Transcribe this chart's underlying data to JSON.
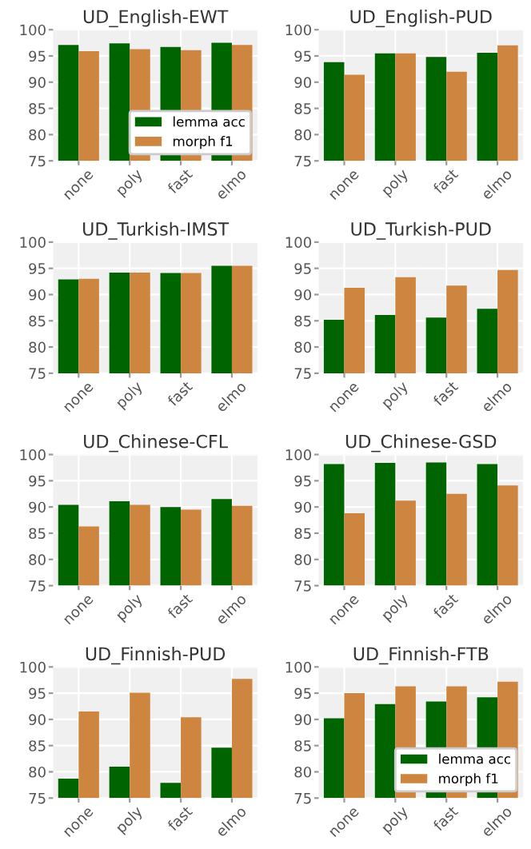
{
  "chart_data": [
    {
      "type": "bar",
      "title": "UD_English-EWT",
      "categories": [
        "none",
        "poly",
        "fast",
        "elmo"
      ],
      "ylim": [
        75,
        100
      ],
      "yticks": [
        75,
        80,
        85,
        90,
        95,
        100
      ],
      "grid": true,
      "legend": "bottom right",
      "series": [
        {
          "name": "lemma acc",
          "color": "#006400",
          "values": [
            97.1,
            97.4,
            96.7,
            97.5
          ]
        },
        {
          "name": "morph f1",
          "color": "#cd853f",
          "values": [
            95.9,
            96.3,
            96.1,
            97.1
          ]
        }
      ]
    },
    {
      "type": "bar",
      "title": "UD_English-PUD",
      "categories": [
        "none",
        "poly",
        "fast",
        "elmo"
      ],
      "ylim": [
        75,
        100
      ],
      "yticks": [
        75,
        80,
        85,
        90,
        95,
        100
      ],
      "grid": true,
      "series": [
        {
          "color": "#006400",
          "values": [
            93.8,
            95.5,
            94.8,
            95.6
          ]
        },
        {
          "color": "#cd853f",
          "values": [
            91.4,
            95.5,
            92.0,
            97.0
          ]
        }
      ]
    },
    {
      "type": "bar",
      "title": "UD_Turkish-IMST",
      "categories": [
        "none",
        "poly",
        "fast",
        "elmo"
      ],
      "ylim": [
        75,
        100
      ],
      "yticks": [
        75,
        80,
        85,
        90,
        95,
        100
      ],
      "grid": true,
      "series": [
        {
          "color": "#006400",
          "values": [
            92.9,
            94.2,
            94.1,
            95.5
          ]
        },
        {
          "color": "#cd853f",
          "values": [
            93.0,
            94.2,
            94.1,
            95.5
          ]
        }
      ]
    },
    {
      "type": "bar",
      "title": "UD_Turkish-PUD",
      "categories": [
        "none",
        "poly",
        "fast",
        "elmo"
      ],
      "ylim": [
        75,
        100
      ],
      "yticks": [
        75,
        80,
        85,
        90,
        95,
        100
      ],
      "grid": true,
      "series": [
        {
          "color": "#006400",
          "values": [
            85.2,
            86.1,
            85.6,
            87.3
          ]
        },
        {
          "color": "#cd853f",
          "values": [
            91.3,
            93.3,
            91.7,
            94.7
          ]
        }
      ]
    },
    {
      "type": "bar",
      "title": "UD_Chinese-CFL",
      "categories": [
        "none",
        "poly",
        "fast",
        "elmo"
      ],
      "ylim": [
        75,
        100
      ],
      "yticks": [
        75,
        80,
        85,
        90,
        95,
        100
      ],
      "grid": true,
      "series": [
        {
          "color": "#006400",
          "values": [
            90.4,
            91.1,
            90.0,
            91.5
          ]
        },
        {
          "color": "#cd853f",
          "values": [
            86.3,
            90.4,
            89.5,
            90.2
          ]
        }
      ]
    },
    {
      "type": "bar",
      "title": "UD_Chinese-GSD",
      "categories": [
        "none",
        "poly",
        "fast",
        "elmo"
      ],
      "ylim": [
        75,
        100
      ],
      "yticks": [
        75,
        80,
        85,
        90,
        95,
        100
      ],
      "grid": true,
      "series": [
        {
          "color": "#006400",
          "values": [
            98.2,
            98.4,
            98.5,
            98.2
          ]
        },
        {
          "color": "#cd853f",
          "values": [
            88.8,
            91.2,
            92.5,
            94.1
          ]
        }
      ]
    },
    {
      "type": "bar",
      "title": "UD_Finnish-PUD",
      "categories": [
        "none",
        "poly",
        "fast",
        "elmo"
      ],
      "ylim": [
        75,
        100
      ],
      "yticks": [
        75,
        80,
        85,
        90,
        95,
        100
      ],
      "grid": true,
      "series": [
        {
          "color": "#006400",
          "values": [
            78.7,
            81.0,
            77.9,
            84.6
          ]
        },
        {
          "color": "#cd853f",
          "values": [
            91.5,
            95.1,
            90.4,
            97.7
          ]
        }
      ]
    },
    {
      "type": "bar",
      "title": "UD_Finnish-FTB",
      "categories": [
        "none",
        "poly",
        "fast",
        "elmo"
      ],
      "ylim": [
        75,
        100
      ],
      "yticks": [
        75,
        80,
        85,
        90,
        95,
        100
      ],
      "grid": true,
      "legend": "bottom right",
      "series": [
        {
          "name": "lemma acc",
          "color": "#006400",
          "values": [
            90.2,
            92.9,
            93.4,
            94.2
          ]
        },
        {
          "name": "morph f1",
          "color": "#cd853f",
          "values": [
            95.0,
            96.3,
            96.3,
            97.2
          ]
        }
      ]
    }
  ]
}
